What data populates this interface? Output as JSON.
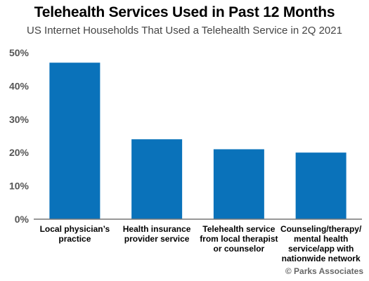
{
  "chart_data": {
    "type": "bar",
    "title": "Telehealth Services Used in Past 12 Months",
    "subtitle": "US Internet Households That Used a Telehealth Service in 2Q 2021",
    "categories": [
      [
        "Local physician’s",
        "practice"
      ],
      [
        "Health insurance",
        "provider service"
      ],
      [
        "Telehealth service",
        "from local therapist",
        "or counselor"
      ],
      [
        "Counseling/therapy/",
        "mental health",
        "service/app with",
        "nationwide network"
      ]
    ],
    "values": [
      47,
      24,
      21,
      20
    ],
    "ylim": [
      0,
      50
    ],
    "yticks": [
      "0%",
      "10%",
      "20%",
      "30%",
      "40%",
      "50%"
    ],
    "xlabel": "",
    "ylabel": "",
    "grid": false,
    "bar_color": "#0a72ba"
  },
  "copyright": "© Parks Associates"
}
